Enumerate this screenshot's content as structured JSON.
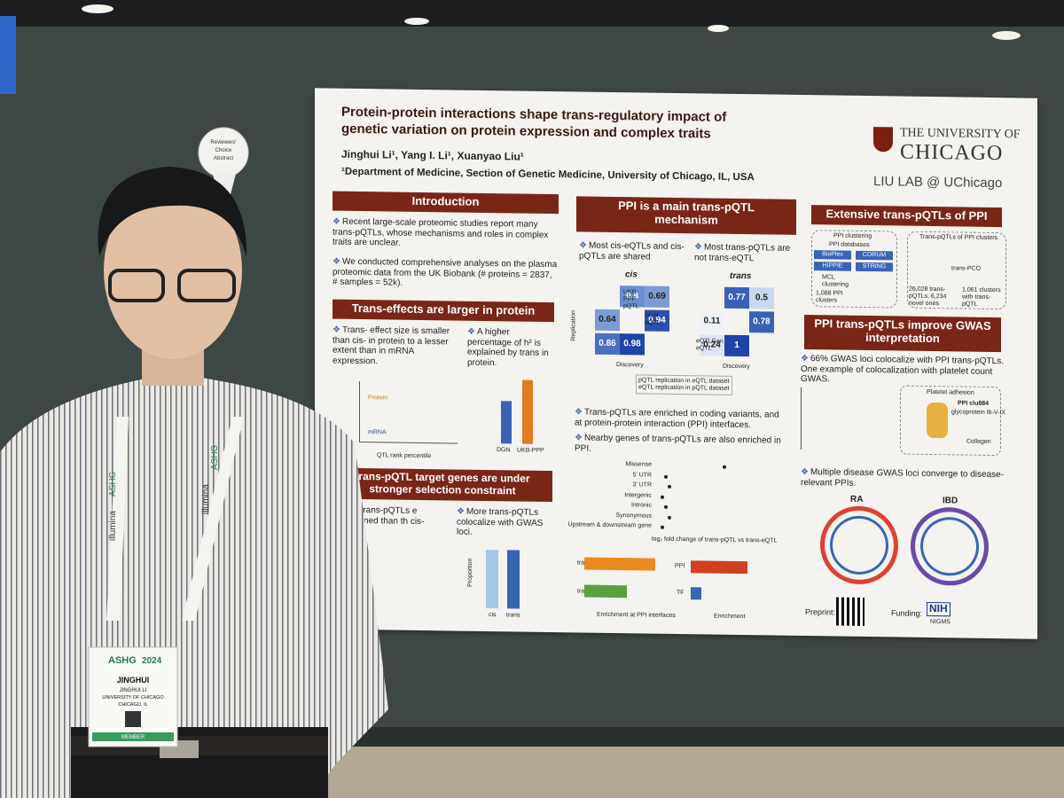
{
  "poster": {
    "title": [
      "Protein-protein interactions shape trans-regulatory impact of",
      "genetic variation on protein expression and complex traits"
    ],
    "authors": "Jinghui Li¹, Yang I. Li¹, Xuanyao Liu¹",
    "affiliation": "¹Department of Medicine, Section of Genetic Medicine, University of Chicago, IL, USA",
    "university": [
      "THE UNIVERSITY OF",
      "CHICAGO"
    ],
    "lab": "LIU LAB @ UChicago",
    "intro": {
      "heading": "Introduction",
      "bullets": [
        "Recent large-scale proteomic studies report many trans-pQTLs, whose mechanisms and roles in complex traits are unclear.",
        "We conducted comprehensive analyses on the plasma proteomic data from the UK Biobank (# proteins = 2837, # samples = 52k)."
      ]
    },
    "effects": {
      "heading": "Trans-effects are larger in protein",
      "bullets": [
        "Trans- effect size is smaller than cis- in protein to a lesser extent than in mRNA expression.",
        "A higher percentage of h² is explained by trans in protein."
      ],
      "line_labels": [
        "Protein",
        "mRNA"
      ],
      "xlabel": "QTL rank percentile",
      "bar_labels": [
        "DGN",
        "UKB-PPP"
      ]
    },
    "selection": {
      "heading": "trans-pQTL target genes are under stronger selection constraint",
      "bullets": [
        "with trans-pQTLs e constrained than th cis-pQTLs.",
        "More trans-pQTLs colocalize with GWAS loci."
      ],
      "bar_labels": [
        "cis",
        "trans"
      ],
      "ylabel": "Proportion"
    },
    "ppi": {
      "heading": [
        "PPI is a main trans-pQTL",
        "mechanism"
      ],
      "bullets": [
        "Most cis-eQTLs and cis-pQTLs are shared",
        "Most trans-pQTLs are not trans-eQTL"
      ],
      "panels": [
        {
          "title": "cis",
          "values": [
            "0.8",
            "0.69",
            "0.64",
            "0.94",
            "0.86",
            "0.98"
          ]
        },
        {
          "title": "trans",
          "values": [
            "0.77",
            "0.5",
            "0.11",
            "0.78",
            "0.24",
            "1"
          ]
        }
      ],
      "row_labels": [
        "UKB-PPP pQTL",
        "DGN eQTL",
        "eQTLGen eQTL"
      ],
      "ylabel": "Replication",
      "xlabel": "Discovery",
      "legend": [
        "pQTL replication in eQTL dataset",
        "eQTL replication in pQTL dataset"
      ],
      "bullets2": [
        "Trans-pQTLs are enriched in coding variants, and at protein-protein interaction (PPI) interfaces.",
        "Nearby genes of trans-pQTLs are also enriched in PPI."
      ],
      "forest_categories": [
        "Missense",
        "5' UTR",
        "3' UTR",
        "Intergenic",
        "Intronic",
        "Synonymous",
        "Upstream & downstream gene"
      ],
      "forest_xlabel": "log₂ fold change of trans-pQTL vs trans-eQTL",
      "enrich_labels": [
        "trans-pQTL",
        "trans-eQTL"
      ],
      "enrich_xlabel": "Enrichment at PPI interfaces",
      "tf_labels": [
        "PPI",
        "TF"
      ],
      "tf_xlabel": "Enrichment"
    },
    "extensive": {
      "heading": "Extensive trans-pQTLs of PPI",
      "left_title": "PPI clustering",
      "db_title": "PPI databases",
      "dbs": [
        "BioPlex",
        "CORUM",
        "HIPPIE",
        "STRING"
      ],
      "mcl": "MCL clustering",
      "clusters": "1,088 PPI clusters",
      "right_title": "Trans-pQTLs of PPI clusters",
      "method": "trans-PCO",
      "count": "26,028 trans-pQTLs; 6,234 novel ones",
      "cluster_count": "1,061 clusters with trans-pQTL"
    },
    "gwas": {
      "heading": [
        "PPI trans-pQTLs improve GWAS",
        "interpretation"
      ],
      "bullets": [
        "66% GWAS loci colocalize with PPI trans-pQTLs. One example of colocalization with platelet count GWAS.",
        "Multiple disease GWAS loci converge to disease-relevant PPIs."
      ],
      "panel": [
        "Platelet adhesion",
        "PPI clu884",
        "glycoprotein Ib-V-IX",
        "Collagen"
      ],
      "circles": [
        "RA",
        "IBD"
      ]
    },
    "footer": {
      "preprint": "Preprint:",
      "funding": "Funding:",
      "nih": "NIH",
      "nigms": "NIGMS"
    }
  },
  "ribbon": [
    "Reviewers'",
    "Choice",
    "Abstract"
  ],
  "lanyard": [
    "ASHG",
    "illumina"
  ],
  "badge": {
    "org": "ASHG",
    "year": "2024",
    "name": "JINGHUI",
    "full_name": "JINGHUI LI",
    "affiliation": "UNIVERSITY OF CHICAGO",
    "city": "CHICAGO, IL",
    "role": "MEMBER"
  }
}
